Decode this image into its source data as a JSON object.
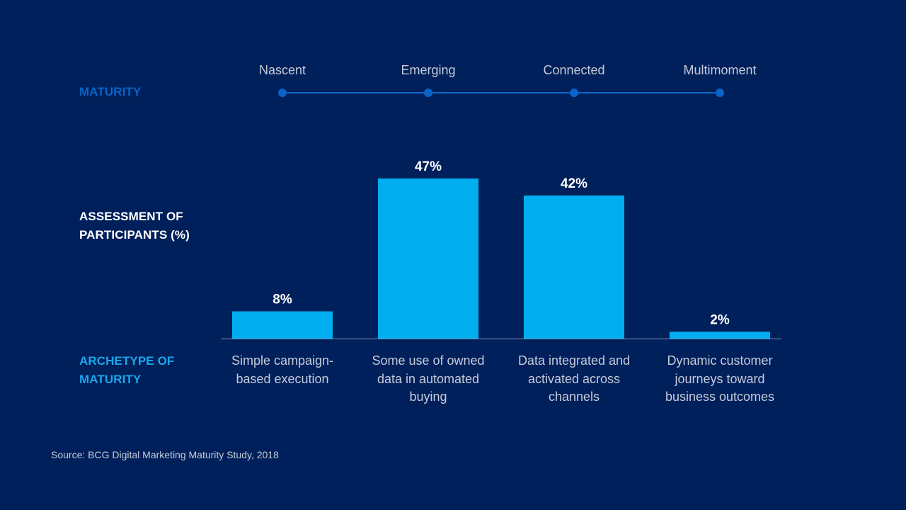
{
  "labels": {
    "maturity": "MATURITY",
    "assessment_line1": "ASSESSMENT OF",
    "assessment_line2": "PARTICIPANTS (%)",
    "archetype_line1": "ARCHETYPE OF",
    "archetype_line2": "MATURITY"
  },
  "source": "Source: BCG Digital Marketing Maturity Study, 2018",
  "colors": {
    "background": "#00205b",
    "bar": "#00aeef",
    "timeline": "#0a64c8",
    "maturity_label": "#0a64c8",
    "archetype_label": "#1aa7ec"
  },
  "chart_data": {
    "type": "bar",
    "title": "",
    "ylabel": "ASSESSMENT OF PARTICIPANTS (%)",
    "xlabel": "ARCHETYPE OF MATURITY",
    "stages": [
      "Nascent",
      "Emerging",
      "Connected",
      "Multimoment"
    ],
    "categories": [
      [
        "Simple campaign-",
        "based execution"
      ],
      [
        "Some use of owned",
        "data in automated",
        "buying"
      ],
      [
        "Data integrated and",
        "activated across",
        "channels"
      ],
      [
        "Dynamic customer",
        "journeys toward",
        "business outcomes"
      ]
    ],
    "values": [
      8,
      47,
      42,
      2
    ],
    "value_labels": [
      "8%",
      "47%",
      "42%",
      "2%"
    ],
    "unit": "%",
    "ylim": [
      0,
      47
    ]
  }
}
